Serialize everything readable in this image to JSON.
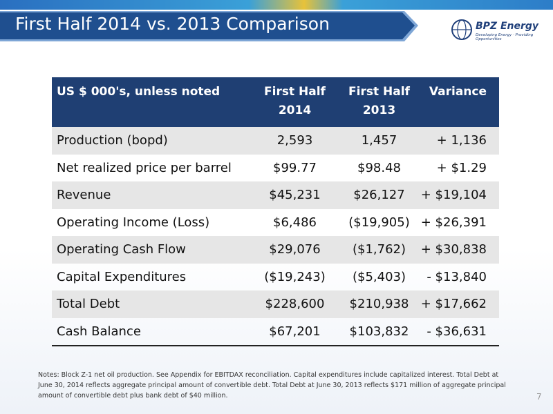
{
  "header": {
    "title": "First Half 2014 vs. 2013 Comparison",
    "logo": {
      "name": "BPZ Energy",
      "tagline": "Developing Energy · Providing Opportunities"
    }
  },
  "table": {
    "columns": [
      "US $ 000's, unless noted",
      "First Half 2014",
      "First Half 2013",
      "Variance"
    ],
    "rows": [
      [
        "Production (bopd)",
        "2,593",
        "1,457",
        "+ 1,136"
      ],
      [
        "Net realized price per barrel",
        "$99.77",
        "$98.48",
        "+ $1.29"
      ],
      [
        "Revenue",
        "$45,231",
        "$26,127",
        "+ $19,104"
      ],
      [
        "Operating Income (Loss)",
        "$6,486",
        "($19,905)",
        "+ $26,391"
      ],
      [
        "Operating Cash Flow",
        "$29,076",
        "($1,762)",
        "+ $30,838"
      ],
      [
        "Capital Expenditures",
        "($19,243)",
        "($5,403)",
        "- $13,840"
      ],
      [
        "Total Debt",
        "$228,600",
        "$210,938",
        "+ $17,662"
      ],
      [
        "Cash Balance",
        "$67,201",
        "$103,832",
        "- $36,631"
      ]
    ]
  },
  "notes": "Notes:  Block Z-1 net oil production.  See Appendix for EBITDAX reconciliation.  Capital expenditures include capitalized interest.  Total Debt at June 30, 2014 reflects aggregate principal amount of convertible debt.  Total Debt at June 30, 2013 reflects $171 million of aggregate principal amount of convertible debt plus bank debt of $40 million.",
  "page_number": "7"
}
